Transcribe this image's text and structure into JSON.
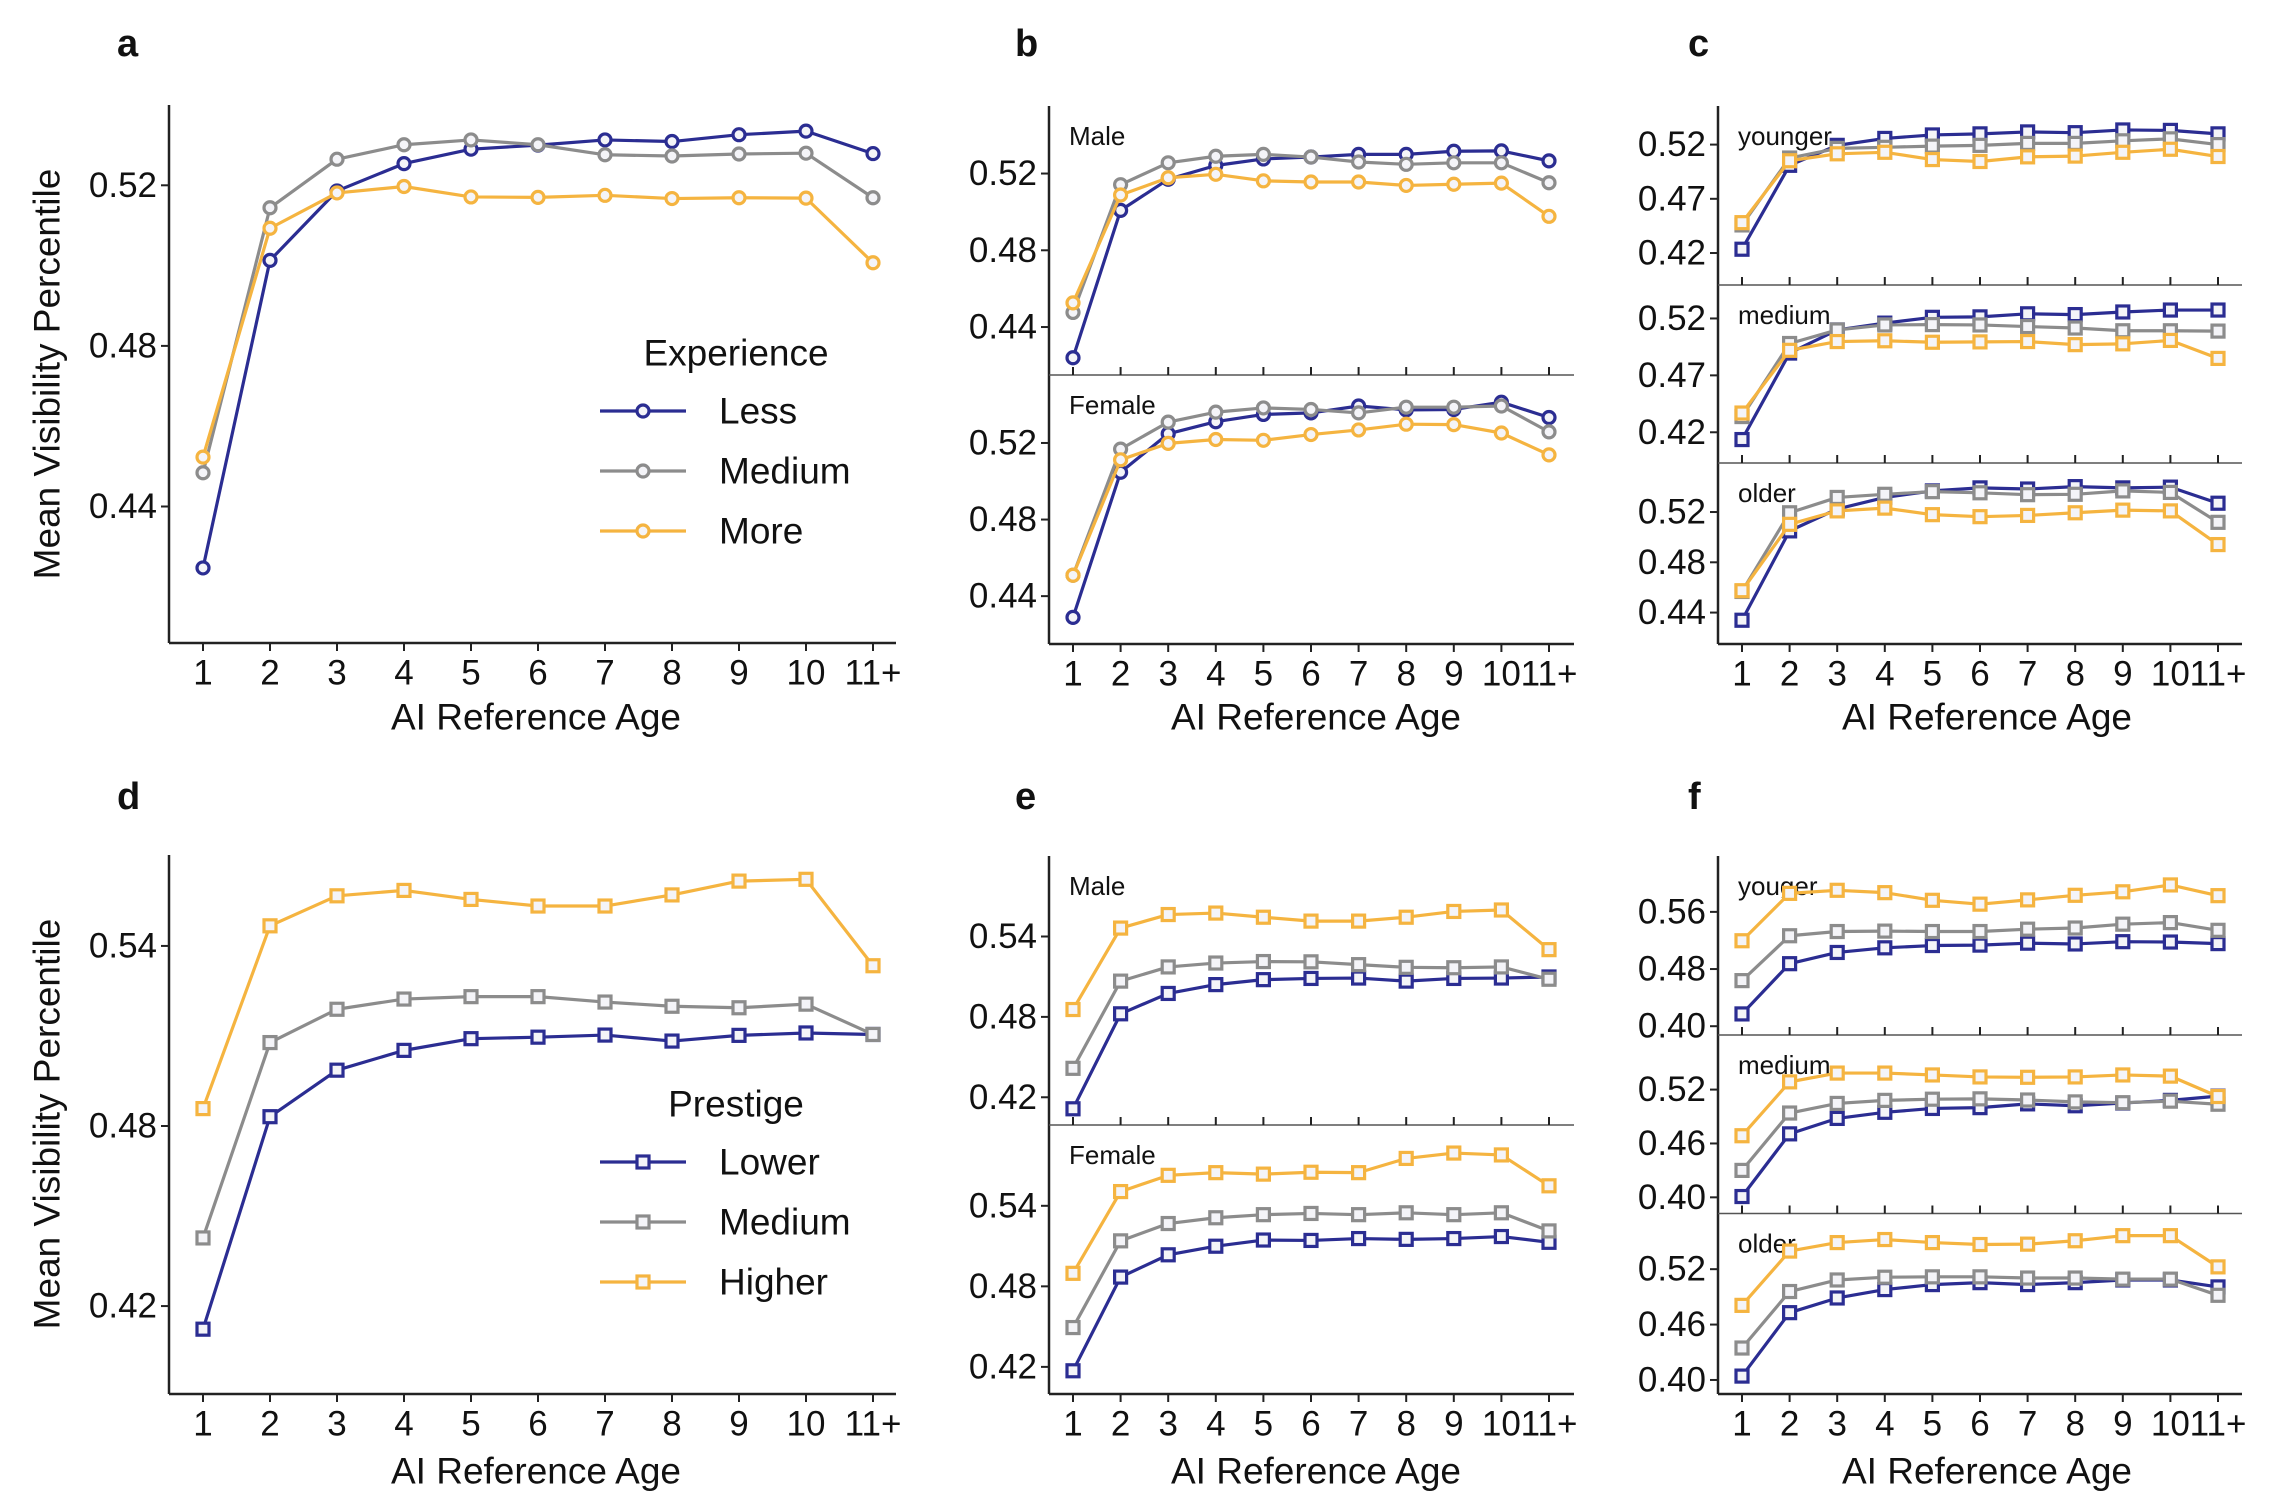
{
  "colors": {
    "Lower_or_Less": "#2B2D92",
    "Medium": "#8C8C8C",
    "Higher_or_More": "#F5B440"
  },
  "chart_data": [
    {
      "panel": "a",
      "type": "line",
      "marker": "circle",
      "xlabel": "AI Reference Age",
      "ylabel": "Mean Visibility Percentile",
      "categories": [
        "1",
        "2",
        "3",
        "4",
        "5",
        "6",
        "7",
        "8",
        "9",
        "10",
        "11+"
      ],
      "legend": {
        "title": "Experience",
        "position": "center-right",
        "entries": [
          "Less",
          "Medium",
          "More"
        ]
      },
      "subplots": [
        {
          "label": "",
          "ylim": [
            0.406,
            0.54
          ],
          "yticks": [
            "0.44",
            "0.48",
            "0.52"
          ],
          "series": [
            {
              "name": "Less",
              "values": [
                0.4247,
                0.5013,
                0.5186,
                0.5254,
                0.529,
                0.53,
                0.5313,
                0.5309,
                0.5326,
                0.5335,
                0.5279
              ]
            },
            {
              "name": "Medium",
              "values": [
                0.4484,
                0.5144,
                0.5265,
                0.5301,
                0.5313,
                0.5301,
                0.5276,
                0.5273,
                0.5278,
                0.528,
                0.5169
              ]
            },
            {
              "name": "More",
              "values": [
                0.4523,
                0.5093,
                0.5181,
                0.5197,
                0.5171,
                0.517,
                0.5175,
                0.5167,
                0.5169,
                0.5168,
                0.5007
              ]
            }
          ]
        }
      ]
    },
    {
      "panel": "b",
      "type": "line",
      "marker": "circle",
      "xlabel": "AI Reference Age",
      "ylabel": "",
      "categories": [
        "1",
        "2",
        "3",
        "4",
        "5",
        "6",
        "7",
        "8",
        "9",
        "10",
        "11+"
      ],
      "subplots": [
        {
          "label": "Male",
          "ylim": [
            0.415,
            0.5552
          ],
          "yticks": [
            "0.44",
            "0.48",
            "0.52"
          ],
          "series": [
            {
              "values": [
                0.424,
                0.5008,
                0.517,
                0.5242,
                0.5276,
                0.5286,
                0.53,
                0.53,
                0.5316,
                0.5318,
                0.5266
              ]
            },
            {
              "values": [
                0.4476,
                0.5142,
                0.5256,
                0.529,
                0.53,
                0.5286,
                0.526,
                0.5248,
                0.5256,
                0.5256,
                0.5152
              ]
            },
            {
              "values": [
                0.4526,
                0.5088,
                0.5178,
                0.5196,
                0.5162,
                0.5156,
                0.5156,
                0.5138,
                0.5144,
                0.515,
                0.4977
              ]
            }
          ]
        },
        {
          "label": "Female",
          "ylim": [
            0.415,
            0.5555
          ],
          "yticks": [
            "0.44",
            "0.48",
            "0.52"
          ],
          "series": [
            {
              "values": [
                0.4289,
                0.5047,
                0.5248,
                0.5311,
                0.5349,
                0.5357,
                0.5393,
                0.5373,
                0.5375,
                0.5413,
                0.5333
              ]
            },
            {
              "values": [
                0.4509,
                0.5168,
                0.5309,
                0.5361,
                0.5383,
                0.5375,
                0.5357,
                0.5387,
                0.5387,
                0.5393,
                0.5258
              ]
            },
            {
              "values": [
                0.4509,
                0.5112,
                0.5198,
                0.5218,
                0.5214,
                0.5244,
                0.5268,
                0.5298,
                0.5296,
                0.5252,
                0.5138
              ]
            }
          ]
        }
      ]
    },
    {
      "panel": "c",
      "type": "line",
      "marker": "square",
      "xlabel": "AI Reference Age",
      "ylabel": "",
      "categories": [
        "1",
        "2",
        "3",
        "4",
        "5",
        "6",
        "7",
        "8",
        "9",
        "10",
        "11+"
      ],
      "subplots": [
        {
          "label": "younger",
          "ylim": [
            0.3905,
            0.5556
          ],
          "yticks": [
            "0.42",
            "0.47",
            "0.52"
          ],
          "series": [
            {
              "values": [
                0.4235,
                0.5009,
                0.5193,
                0.5257,
                0.5289,
                0.5299,
                0.5317,
                0.531,
                0.5335,
                0.5331,
                0.5299
              ]
            },
            {
              "values": [
                0.4459,
                0.5076,
                0.5165,
                0.5175,
                0.5186,
                0.5193,
                0.5211,
                0.5211,
                0.5235,
                0.5253,
                0.52
              ]
            },
            {
              "values": [
                0.448,
                0.5051,
                0.5115,
                0.5129,
                0.5062,
                0.5044,
                0.5087,
                0.5094,
                0.5129,
                0.5157,
                0.509
              ]
            }
          ]
        },
        {
          "label": "medium",
          "ylim": [
            0.393,
            0.5494
          ],
          "yticks": [
            "0.42",
            "0.47",
            "0.52"
          ],
          "series": [
            {
              "values": [
                0.4136,
                0.4896,
                0.5099,
                0.5159,
                0.521,
                0.5214,
                0.5241,
                0.5234,
                0.5257,
                0.5274,
                0.5274
              ]
            },
            {
              "values": [
                0.4338,
                0.498,
                0.5099,
                0.5143,
                0.5146,
                0.5143,
                0.5129,
                0.5116,
                0.5092,
                0.5092,
                0.5089
              ]
            },
            {
              "values": [
                0.4369,
                0.492,
                0.4997,
                0.5004,
                0.4991,
                0.4994,
                0.4997,
                0.497,
                0.4977,
                0.5007,
                0.4849
              ]
            }
          ]
        },
        {
          "label": "older",
          "ylim": [
            0.415,
            0.559
          ],
          "yticks": [
            "0.44",
            "0.48",
            "0.52"
          ],
          "series": [
            {
              "values": [
                0.4339,
                0.505,
                0.5224,
                0.5316,
                0.5368,
                0.5392,
                0.5383,
                0.5402,
                0.5392,
                0.5398,
                0.527
              ]
            },
            {
              "values": [
                0.4568,
                0.5194,
                0.5316,
                0.5341,
                0.5362,
                0.5353,
                0.5338,
                0.5341,
                0.5368,
                0.5356,
                0.5118
              ]
            },
            {
              "values": [
                0.4574,
                0.5102,
                0.5209,
                0.5231,
                0.5179,
                0.5163,
                0.5173,
                0.5194,
                0.5215,
                0.5209,
                0.4941
              ]
            }
          ]
        }
      ]
    },
    {
      "panel": "d",
      "type": "line",
      "marker": "square",
      "xlabel": "AI Reference Age",
      "ylabel": "Mean Visibility Percentile",
      "categories": [
        "1",
        "2",
        "3",
        "4",
        "5",
        "6",
        "7",
        "8",
        "9",
        "10",
        "11+"
      ],
      "legend": {
        "title": "Prestige",
        "position": "center-right",
        "entries": [
          "Lower",
          "Medium",
          "Higher"
        ]
      },
      "subplots": [
        {
          "label": "",
          "ylim": [
            0.3907,
            0.5703
          ],
          "yticks": [
            "0.42",
            "0.48",
            "0.54"
          ],
          "series": [
            {
              "name": "Lower",
              "values": [
                0.4123,
                0.4831,
                0.4986,
                0.5052,
                0.5091,
                0.5096,
                0.5103,
                0.5083,
                0.5102,
                0.511,
                0.5105
              ]
            },
            {
              "name": "Medium",
              "values": [
                0.4427,
                0.5078,
                0.5189,
                0.5223,
                0.5231,
                0.5231,
                0.5213,
                0.5199,
                0.5194,
                0.5206,
                0.5105
              ]
            },
            {
              "name": "Higher",
              "values": [
                0.4858,
                0.5467,
                0.5567,
                0.5585,
                0.5555,
                0.5533,
                0.5533,
                0.557,
                0.5616,
                0.5622,
                0.5334
              ]
            }
          ]
        }
      ]
    },
    {
      "panel": "e",
      "type": "line",
      "marker": "square",
      "xlabel": "AI Reference Age",
      "ylabel": "",
      "categories": [
        "1",
        "2",
        "3",
        "4",
        "5",
        "6",
        "7",
        "8",
        "9",
        "10",
        "11+"
      ],
      "subplots": [
        {
          "label": "Male",
          "ylim": [
            0.3993,
            0.6001
          ],
          "yticks": [
            "0.42",
            "0.48",
            "0.54"
          ],
          "series": [
            {
              "values": [
                0.4114,
                0.4823,
                0.4975,
                0.5041,
                0.5078,
                0.5087,
                0.509,
                0.5067,
                0.5087,
                0.509,
                0.5098
              ]
            },
            {
              "values": [
                0.4416,
                0.5067,
                0.5173,
                0.5202,
                0.5213,
                0.5211,
                0.519,
                0.517,
                0.5167,
                0.5173,
                0.5081
              ]
            },
            {
              "values": [
                0.4855,
                0.5463,
                0.5564,
                0.5575,
                0.5544,
                0.5515,
                0.5515,
                0.5544,
                0.5587,
                0.5598,
                0.5302
              ]
            }
          ]
        },
        {
          "label": "Female",
          "ylim": [
            0.3998,
            0.6002
          ],
          "yticks": [
            "0.42",
            "0.48",
            "0.54"
          ],
          "series": [
            {
              "values": [
                0.4171,
                0.4869,
                0.5035,
                0.5099,
                0.5145,
                0.5142,
                0.5156,
                0.515,
                0.5156,
                0.5171,
                0.5128
              ]
            },
            {
              "values": [
                0.4493,
                0.5139,
                0.5268,
                0.5311,
                0.5334,
                0.5343,
                0.5334,
                0.5348,
                0.5334,
                0.5348,
                0.5213
              ]
            },
            {
              "values": [
                0.4897,
                0.5506,
                0.5627,
                0.5647,
                0.5636,
                0.565,
                0.5647,
                0.5753,
                0.5793,
                0.5779,
                0.5549
              ]
            }
          ]
        }
      ]
    },
    {
      "panel": "f",
      "type": "line",
      "marker": "square",
      "xlabel": "AI Reference Age",
      "ylabel": "",
      "categories": [
        "1",
        "2",
        "3",
        "4",
        "5",
        "6",
        "7",
        "8",
        "9",
        "10",
        "11+"
      ],
      "subplots": [
        {
          "label": "youger",
          "ylim": [
            0.3877,
            0.6382
          ],
          "yticks": [
            "0.40",
            "0.48",
            "0.56"
          ],
          "series": [
            {
              "values": [
                0.4172,
                0.4875,
                0.5032,
                0.5097,
                0.5129,
                0.5135,
                0.5162,
                0.5151,
                0.5183,
                0.5178,
                0.5156
              ]
            },
            {
              "values": [
                0.4638,
                0.5266,
                0.5325,
                0.5331,
                0.5325,
                0.5325,
                0.5358,
                0.5374,
                0.5428,
                0.545,
                0.5342
              ]
            },
            {
              "values": [
                0.5196,
                0.5859,
                0.5902,
                0.5869,
                0.5762,
                0.5708,
                0.5768,
                0.5832,
                0.5881,
                0.5977,
                0.5827
              ]
            }
          ]
        },
        {
          "label": "medium",
          "ylim": [
            0.382,
            0.5808
          ],
          "yticks": [
            "0.40",
            "0.46",
            "0.52"
          ],
          "series": [
            {
              "values": [
                0.4009,
                0.4707,
                0.4879,
                0.4947,
                0.499,
                0.4999,
                0.5041,
                0.502,
                0.505,
                0.508,
                0.5127
              ]
            },
            {
              "values": [
                0.43,
                0.4939,
                0.5046,
                0.508,
                0.5093,
                0.5097,
                0.5084,
                0.5063,
                0.5054,
                0.5071,
                0.5037
              ]
            },
            {
              "values": [
                0.4686,
                0.5286,
                0.5384,
                0.5384,
                0.5363,
                0.5341,
                0.5337,
                0.5341,
                0.5363,
                0.535,
                0.5123
              ]
            }
          ]
        },
        {
          "label": "older",
          "ylim": [
            0.3848,
            0.5803
          ],
          "yticks": [
            "0.40",
            "0.46",
            "0.52"
          ],
          "series": [
            {
              "values": [
                0.4042,
                0.4729,
                0.4888,
                0.4979,
                0.5033,
                0.5054,
                0.5033,
                0.5054,
                0.5083,
                0.5083,
                0.5008
              ]
            },
            {
              "values": [
                0.4346,
                0.4958,
                0.5083,
                0.5113,
                0.5117,
                0.5117,
                0.5104,
                0.5104,
                0.5092,
                0.5092,
                0.4917
              ]
            },
            {
              "values": [
                0.4808,
                0.5396,
                0.5488,
                0.5521,
                0.5488,
                0.5467,
                0.5471,
                0.5508,
                0.5563,
                0.5563,
                0.5225
              ]
            }
          ]
        }
      ]
    }
  ]
}
